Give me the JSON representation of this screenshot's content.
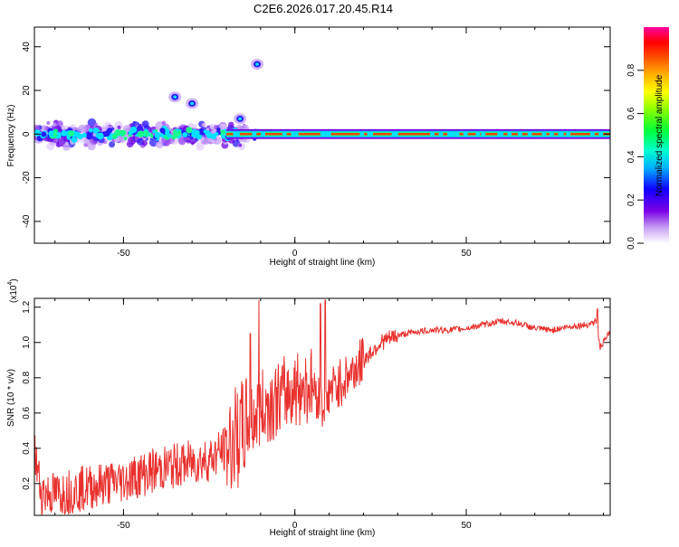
{
  "title": "C2E6.2026.017.20.45.R14",
  "chart_data": [
    {
      "type": "heatmap",
      "title": "C2E6.2026.017.20.45.R14",
      "xlabel": "Height of straight line (km)",
      "ylabel": "Frequency (Hz)",
      "xlim": [
        -76,
        92
      ],
      "ylim": [
        -50,
        49
      ],
      "xticks": [
        -50,
        0,
        50
      ],
      "yticks": [
        -40,
        -20,
        0,
        20,
        40
      ],
      "x_tick_labels": [
        "-50",
        "0",
        "50"
      ],
      "y_tick_labels": [
        "-40",
        "-20",
        "0",
        "20",
        "40"
      ],
      "colorbar": {
        "label": "Normalized spectral amplitude",
        "range": [
          0,
          1
        ],
        "ticks": [
          "0.0",
          "0.2",
          "0.4",
          "0.6",
          "0.8"
        ],
        "tick_values": [
          0,
          0.2,
          0.4,
          0.6,
          0.8
        ]
      },
      "features": {
        "main_ridge_center_hz": 0,
        "main_ridge_range_km": [
          -76,
          92
        ],
        "scattered_region_range_km": [
          -76,
          -14
        ],
        "scattered_spread_hz": [
          -8,
          8
        ],
        "isolated_blob_centers": [
          {
            "x": -30,
            "y": 14
          },
          {
            "x": -35,
            "y": 17
          },
          {
            "x": -16,
            "y": 7
          },
          {
            "x": -11,
            "y": 32
          }
        ]
      }
    },
    {
      "type": "line",
      "xlabel": "Height of straight line (km)",
      "ylabel": "SNR (10 * v/v)",
      "y_scale_label": "(x10",
      "y_scale_exponent": "4",
      "y_scale_suffix": ")",
      "xlim": [
        -76,
        92
      ],
      "ylim": [
        0.02,
        1.25
      ],
      "xticks": [
        -50,
        0,
        50
      ],
      "yticks": [
        0.2,
        0.4,
        0.6,
        0.8,
        1.0,
        1.2
      ],
      "x_tick_labels": [
        "-50",
        "0",
        "50"
      ],
      "y_tick_labels": [
        "0.2",
        "0.4",
        "0.6",
        "0.8",
        "1.0",
        "1.2"
      ],
      "series": [
        {
          "name": "SNR",
          "color": "#e8312e",
          "trend": [
            [
              -76,
              0.38
            ],
            [
              -74,
              0.15
            ],
            [
              -70,
              0.14
            ],
            [
              -65,
              0.16
            ],
            [
              -60,
              0.18
            ],
            [
              -55,
              0.2
            ],
            [
              -50,
              0.22
            ],
            [
              -45,
              0.25
            ],
            [
              -40,
              0.28
            ],
            [
              -35,
              0.3
            ],
            [
              -30,
              0.32
            ],
            [
              -25,
              0.34
            ],
            [
              -20,
              0.4
            ],
            [
              -15,
              0.5
            ],
            [
              -10,
              0.62
            ],
            [
              -5,
              0.68
            ],
            [
              0,
              0.74
            ],
            [
              5,
              0.76
            ],
            [
              9,
              0.6
            ],
            [
              10,
              0.72
            ],
            [
              15,
              0.8
            ],
            [
              20,
              0.9
            ],
            [
              25,
              1.0
            ],
            [
              30,
              1.04
            ],
            [
              35,
              1.06
            ],
            [
              40,
              1.07
            ],
            [
              45,
              1.07
            ],
            [
              50,
              1.08
            ],
            [
              55,
              1.1
            ],
            [
              60,
              1.12
            ],
            [
              65,
              1.11
            ],
            [
              70,
              1.08
            ],
            [
              75,
              1.07
            ],
            [
              80,
              1.09
            ],
            [
              85,
              1.1
            ],
            [
              88,
              1.12
            ],
            [
              89,
              0.97
            ],
            [
              92,
              1.06
            ]
          ],
          "peaks": [
            {
              "x": -10.5,
              "y": 1.24
            },
            {
              "x": 8.8,
              "y": 1.24
            },
            {
              "x": 7.5,
              "y": 1.22
            },
            {
              "x": -13,
              "y": 1.05
            },
            {
              "x": 88.3,
              "y": 1.19
            }
          ]
        }
      ]
    }
  ]
}
